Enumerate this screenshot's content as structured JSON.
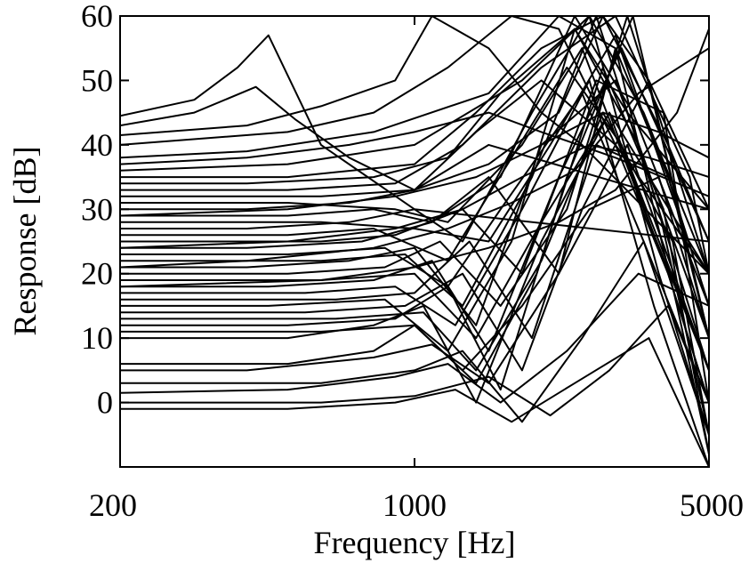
{
  "chart_data": {
    "type": "line",
    "title": "",
    "xlabel": "Frequency [Hz]",
    "ylabel": "Response [dB]",
    "x_scale": "log",
    "xlim": [
      200,
      5000
    ],
    "ylim": [
      -10,
      60
    ],
    "x_ticks": [
      200,
      1000,
      5000
    ],
    "x_tick_labels": [
      "200",
      "1000",
      "5000"
    ],
    "y_ticks": [
      0,
      10,
      20,
      30,
      40,
      50,
      60
    ],
    "y_tick_labels": [
      "0",
      "10",
      "20",
      "30",
      "40",
      "50",
      "60"
    ],
    "grid": false,
    "legend": "none",
    "line_color": "#000000",
    "series": [
      {
        "x": [
          200,
          300,
          380,
          450,
          600,
          1000,
          5000
        ],
        "y": [
          44.5,
          47,
          52,
          57,
          40,
          30,
          25
        ]
      },
      {
        "x": [
          200,
          300,
          420,
          520,
          700,
          1000,
          1500,
          5000
        ],
        "y": [
          43,
          45,
          49,
          44,
          38,
          33,
          40,
          30
        ]
      },
      {
        "x": [
          200,
          400,
          600,
          900,
          1100,
          1500,
          2000,
          2500,
          5000
        ],
        "y": [
          41.5,
          43,
          46,
          50,
          60,
          55,
          45,
          40,
          20
        ]
      },
      {
        "x": [
          200,
          500,
          800,
          1200,
          1700,
          2200,
          3000,
          5000
        ],
        "y": [
          40,
          42,
          45,
          52,
          60,
          58,
          40,
          20
        ]
      },
      {
        "x": [
          200,
          400,
          800,
          1500,
          2200,
          3000,
          4000,
          5000
        ],
        "y": [
          38,
          39,
          42,
          48,
          60,
          55,
          35,
          15
        ]
      },
      {
        "x": [
          200,
          500,
          1000,
          1800,
          2600,
          3500,
          5000
        ],
        "y": [
          36,
          37,
          40,
          50,
          60,
          45,
          20
        ]
      },
      {
        "x": [
          200,
          500,
          1000,
          1400,
          2000,
          2800,
          4000,
          5000
        ],
        "y": [
          35,
          35,
          37,
          45,
          55,
          60,
          40,
          25
        ]
      },
      {
        "x": [
          200,
          400,
          800,
          1200,
          1600,
          2400,
          3200,
          5000
        ],
        "y": [
          34,
          34,
          35,
          38,
          48,
          58,
          45,
          30
        ]
      },
      {
        "x": [
          200,
          500,
          900,
          1300,
          2000,
          3000,
          4500,
          5000
        ],
        "y": [
          33,
          33,
          34,
          40,
          52,
          60,
          35,
          20
        ]
      },
      {
        "x": [
          200,
          600,
          1000,
          1500,
          2200,
          2800,
          3600,
          5000
        ],
        "y": [
          32,
          32,
          33,
          37,
          45,
          60,
          50,
          10
        ]
      },
      {
        "x": [
          200,
          500,
          900,
          1200,
          1800,
          2500,
          3500,
          5000
        ],
        "y": [
          31,
          31,
          30,
          28,
          40,
          55,
          30,
          5
        ]
      },
      {
        "x": [
          200,
          400,
          700,
          1000,
          1400,
          2000,
          3000,
          4000,
          5000
        ],
        "y": [
          30,
          30,
          31,
          33,
          42,
          50,
          40,
          20,
          0
        ]
      },
      {
        "x": [
          200,
          500,
          800,
          1100,
          1600,
          2400,
          3300,
          5000
        ],
        "y": [
          29,
          29,
          30,
          28,
          35,
          60,
          45,
          15
        ]
      },
      {
        "x": [
          200,
          600,
          1000,
          1500,
          2100,
          3000,
          4200,
          5000
        ],
        "y": [
          28,
          28,
          27,
          25,
          40,
          57,
          30,
          10
        ]
      },
      {
        "x": [
          200,
          400,
          700,
          1000,
          1300,
          1900,
          2600,
          3800,
          5000
        ],
        "y": [
          27,
          27,
          28,
          30,
          25,
          45,
          60,
          20,
          -5
        ]
      },
      {
        "x": [
          200,
          500,
          800,
          1200,
          1700,
          2300,
          3100,
          5000
        ],
        "y": [
          26,
          26,
          27,
          22,
          38,
          52,
          40,
          5
        ]
      },
      {
        "x": [
          200,
          600,
          900,
          1300,
          1800,
          2700,
          3900,
          5000
        ],
        "y": [
          25,
          25,
          26,
          30,
          20,
          50,
          45,
          0
        ]
      },
      {
        "x": [
          200,
          400,
          750,
          1100,
          1500,
          2200,
          3000,
          4200,
          5000
        ],
        "y": [
          24,
          24,
          25,
          28,
          35,
          20,
          55,
          15,
          -8
        ]
      },
      {
        "x": [
          200,
          500,
          850,
          1200,
          1600,
          2500,
          3500,
          5000
        ],
        "y": [
          23,
          23,
          24,
          18,
          30,
          48,
          25,
          0
        ]
      },
      {
        "x": [
          200,
          600,
          950,
          1300,
          1900,
          2700,
          3800,
          5000
        ],
        "y": [
          22,
          22,
          23,
          15,
          35,
          60,
          30,
          -5
        ]
      },
      {
        "x": [
          200,
          400,
          700,
          1000,
          1400,
          2000,
          3000,
          5000
        ],
        "y": [
          21,
          21,
          22,
          24,
          12,
          40,
          50,
          10
        ]
      },
      {
        "x": [
          200,
          500,
          850,
          1150,
          1600,
          2300,
          3200,
          5000
        ],
        "y": [
          20,
          20,
          21,
          25,
          15,
          30,
          60,
          20
        ]
      },
      {
        "x": [
          200,
          600,
          1000,
          1400,
          2000,
          2900,
          4000,
          5000
        ],
        "y": [
          19,
          19,
          20,
          10,
          28,
          45,
          20,
          0
        ]
      },
      {
        "x": [
          200,
          450,
          800,
          1100,
          1500,
          2200,
          3100,
          5000
        ],
        "y": [
          18,
          18,
          19,
          22,
          8,
          35,
          55,
          25
        ]
      },
      {
        "x": [
          200,
          550,
          900,
          1250,
          1800,
          2600,
          3700,
          5000
        ],
        "y": [
          17,
          17,
          18,
          12,
          30,
          50,
          15,
          -10
        ]
      },
      {
        "x": [
          200,
          650,
          1000,
          1350,
          1900,
          2700,
          4000,
          5000
        ],
        "y": [
          16,
          16,
          17,
          25,
          10,
          40,
          35,
          15
        ]
      },
      {
        "x": [
          200,
          450,
          850,
          1200,
          1700,
          2400,
          3400,
          5000
        ],
        "y": [
          15,
          15,
          16,
          8,
          25,
          58,
          40,
          5
        ]
      },
      {
        "x": [
          200,
          550,
          950,
          1300,
          1800,
          2500,
          3600,
          5000
        ],
        "y": [
          14,
          14,
          15,
          20,
          5,
          30,
          50,
          30
        ]
      },
      {
        "x": [
          200,
          650,
          1050,
          1400,
          2000,
          2800,
          4100,
          5000
        ],
        "y": [
          13,
          13,
          14,
          5,
          22,
          45,
          25,
          -5
        ]
      },
      {
        "x": [
          200,
          500,
          900,
          1200,
          1600,
          2300,
          3300,
          5000
        ],
        "y": [
          12,
          12,
          13,
          18,
          2,
          35,
          60,
          10
        ]
      },
      {
        "x": [
          200,
          600,
          1000,
          1400,
          1950,
          2800,
          3900,
          5000
        ],
        "y": [
          11,
          11,
          12,
          3,
          20,
          52,
          30,
          -8
        ]
      },
      {
        "x": [
          200,
          500,
          800,
          1050,
          1400,
          2000,
          2900,
          5000
        ],
        "y": [
          10,
          10,
          12,
          15,
          0,
          25,
          45,
          20
        ]
      },
      {
        "x": [
          200,
          500,
          800,
          1000,
          1300,
          1800,
          2600,
          3800,
          5000
        ],
        "y": [
          6,
          6,
          8,
          12,
          5,
          15,
          30,
          35,
          10
        ]
      },
      {
        "x": [
          200,
          400,
          800,
          1100,
          1500,
          2200,
          3200,
          5000
        ],
        "y": [
          5,
          5,
          7,
          9,
          3,
          20,
          40,
          5
        ]
      },
      {
        "x": [
          200,
          600,
          1000,
          1300,
          1800,
          2500,
          3500,
          5000
        ],
        "y": [
          3,
          3,
          5,
          8,
          -3,
          10,
          25,
          -5
        ]
      },
      {
        "x": [
          200,
          500,
          900,
          1200,
          1600,
          2300,
          3400,
          5000
        ],
        "y": [
          1.5,
          2,
          4,
          6,
          0,
          8,
          20,
          15
        ]
      },
      {
        "x": [
          200,
          600,
          1000,
          1500,
          2100,
          2900,
          4000,
          5000
        ],
        "y": [
          0,
          0,
          1,
          4,
          -2,
          5,
          15,
          0
        ]
      },
      {
        "x": [
          200,
          500,
          900,
          1250,
          1700,
          2400,
          3600,
          5000
        ],
        "y": [
          -1,
          -1,
          0,
          2,
          -3,
          3,
          10,
          -10
        ]
      },
      {
        "x": [
          200,
          400,
          700,
          1000,
          1500,
          2000,
          3000,
          5000
        ],
        "y": [
          37,
          38,
          40,
          42,
          45,
          42,
          38,
          32
        ]
      },
      {
        "x": [
          200,
          500,
          900,
          1400,
          2000,
          2800,
          3800,
          5000
        ],
        "y": [
          29,
          30,
          32,
          35,
          40,
          45,
          42,
          38
        ]
      },
      {
        "x": [
          200,
          500,
          900,
          1300,
          1800,
          2600,
          3600,
          5000
        ],
        "y": [
          24,
          25,
          27,
          30,
          35,
          40,
          38,
          35
        ]
      },
      {
        "x": [
          200,
          400,
          800,
          1200,
          1700,
          2400,
          3400,
          5000
        ],
        "y": [
          21,
          22,
          24,
          27,
          31,
          36,
          48,
          55
        ]
      },
      {
        "x": [
          200,
          600,
          1000,
          1500,
          2200,
          3000,
          4200,
          5000
        ],
        "y": [
          18,
          19,
          21,
          24,
          28,
          33,
          45,
          58
        ]
      }
    ]
  }
}
